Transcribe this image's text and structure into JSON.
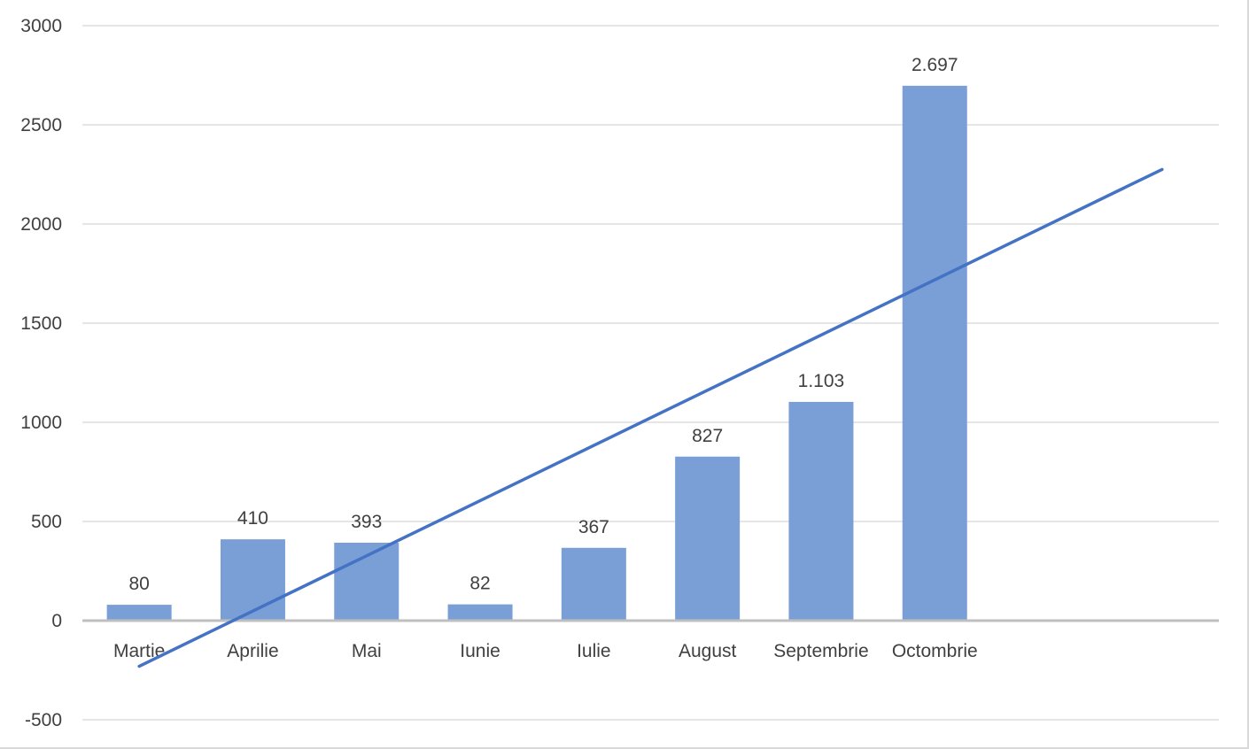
{
  "chart_data": {
    "type": "bar",
    "categories": [
      "Martie",
      "Aprilie",
      "Mai",
      "Iunie",
      "Iulie",
      "August",
      "Septembrie",
      "Octombrie"
    ],
    "series": [
      {
        "values": [
          80,
          410,
          393,
          82,
          367,
          827,
          1103,
          2697
        ],
        "data_labels": [
          "80",
          "410",
          "393",
          "82",
          "367",
          "827",
          "1.103",
          "2.697"
        ],
        "color": "#7a9fd6"
      }
    ],
    "trendline": {
      "type": "linear",
      "color": "#4472c4",
      "start": {
        "category_index": 0,
        "value": -230
      },
      "end": {
        "category_index": 9,
        "value": 2275
      }
    },
    "title": "",
    "xlabel": "",
    "ylabel": "",
    "ylim": [
      -500,
      3000
    ],
    "yticks": [
      -500,
      0,
      500,
      1000,
      1500,
      2000,
      2500,
      3000
    ],
    "ytick_labels": [
      "-500",
      "0",
      "500",
      "1000",
      "1500",
      "2000",
      "2500",
      "3000"
    ],
    "grid": true,
    "legend": "none",
    "colors": {
      "gridline": "#e6e6e6",
      "axis_line": "#bfbfbf",
      "text": "#404040"
    }
  }
}
